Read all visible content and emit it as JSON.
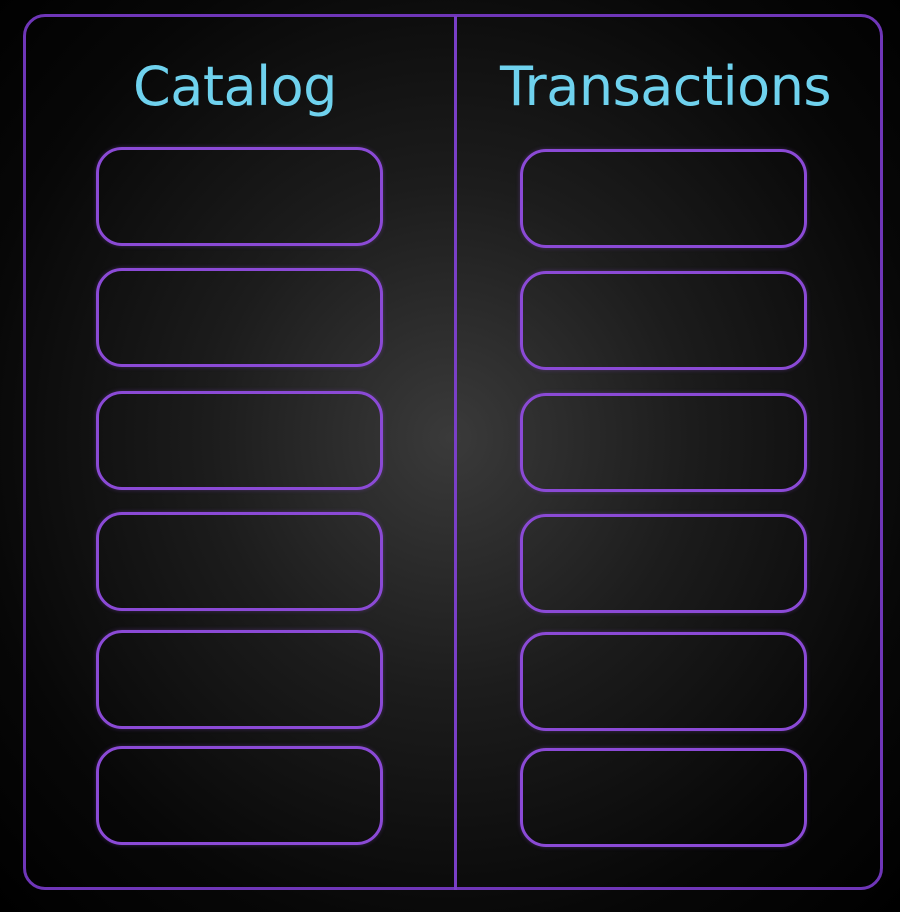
{
  "columns": [
    {
      "title": "Catalog",
      "slot_count": 6
    },
    {
      "title": "Transactions",
      "slot_count": 6
    }
  ],
  "colors": {
    "title_text": "#6fd2ee",
    "frame_border": "#6f36b8",
    "slot_border": "#8b4ad6",
    "background": "#000000"
  }
}
